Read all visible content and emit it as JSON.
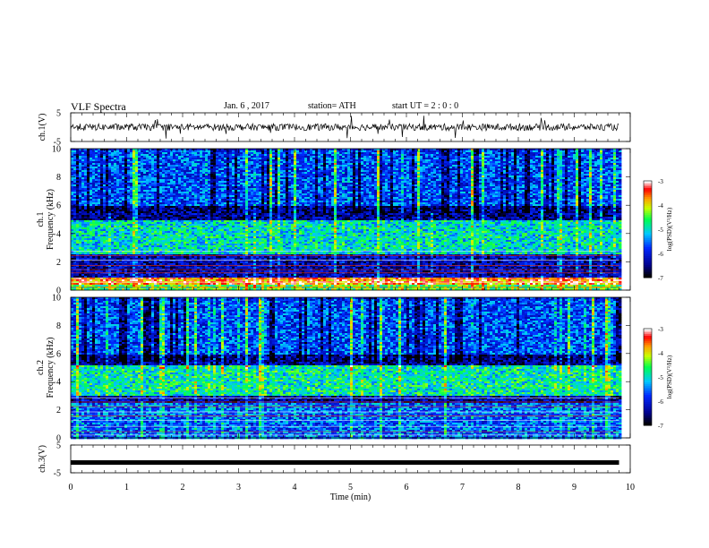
{
  "header": {
    "title": "VLF  Spectra",
    "date": "Jan. 6  , 2017",
    "station": "station= ATH",
    "start": "start  UT  =   2  : 0  : 0"
  },
  "chart_data": [
    {
      "type": "line",
      "name": "ch1-waveform",
      "ylabel": "ch.1(V)",
      "ylim": [
        -5,
        5
      ],
      "yticks": [
        "5",
        "-5"
      ],
      "x_range_min": [
        0,
        9.8
      ],
      "description_of_signal": "noisy waveform centered near 0 V with amplitude about 1-2 V and sporadic spikes"
    },
    {
      "type": "heatmap",
      "name": "ch1-spectrogram",
      "ylabel": "ch.1\nFrequency  (kHz)",
      "ylabel_line1": "ch.1",
      "ylabel_line2": "Frequency  (kHz)",
      "ylim_khz": [
        0,
        10
      ],
      "yticks": [
        "0",
        "2",
        "4",
        "6",
        "8",
        "10"
      ],
      "xlim_min": [
        0,
        10
      ],
      "colorbar": {
        "label": "log(PSD)(V²/Hz)",
        "ticks": [
          "-3",
          "-4",
          "-5",
          "-6",
          "-7"
        ],
        "range": [
          -7,
          -3
        ],
        "colors": [
          "#000000",
          "#0000ff",
          "#00ffff",
          "#00ff00",
          "#ffff00",
          "#ff0000",
          "#ffffff"
        ]
      },
      "bands": [
        {
          "from_khz": 0,
          "to_khz": 0.5,
          "level": -4.5
        },
        {
          "from_khz": 0.5,
          "to_khz": 1.0,
          "level": -3.6
        },
        {
          "from_khz": 1.0,
          "to_khz": 2.6,
          "level": -6.3
        },
        {
          "from_khz": 2.6,
          "to_khz": 5.0,
          "level": -5.0
        },
        {
          "from_khz": 5.0,
          "to_khz": 6.0,
          "level": -6.5
        },
        {
          "from_khz": 6.0,
          "to_khz": 10.0,
          "level": -5.7
        }
      ]
    },
    {
      "type": "heatmap",
      "name": "ch2-spectrogram",
      "ylabel_line1": "ch.2",
      "ylabel_line2": "Frequency  (kHz)",
      "ylim_khz": [
        0,
        10
      ],
      "yticks": [
        "0",
        "2",
        "4",
        "6",
        "8",
        "10"
      ],
      "xlim_min": [
        0,
        10
      ],
      "colorbar": {
        "label": "log(PSD)(V²/Hz)",
        "ticks": [
          "-3",
          "-4",
          "-5",
          "-6",
          "-7"
        ],
        "range": [
          -7,
          -3
        ]
      },
      "bands": [
        {
          "from_khz": 0,
          "to_khz": 2.5,
          "level": -5.6
        },
        {
          "from_khz": 2.5,
          "to_khz": 3.0,
          "level": -6.4
        },
        {
          "from_khz": 3.0,
          "to_khz": 5.2,
          "level": -4.9
        },
        {
          "from_khz": 5.2,
          "to_khz": 6.0,
          "level": -6.5
        },
        {
          "from_khz": 6.0,
          "to_khz": 10.0,
          "level": -5.7
        }
      ]
    },
    {
      "type": "line",
      "name": "ch3-waveform",
      "ylabel": "ch.3(V)",
      "ylim": [
        -5,
        5
      ],
      "yticks": [
        "5",
        "-5"
      ],
      "level_v": -1.3
    }
  ],
  "xaxis": {
    "label": "Time  (min)",
    "ticks": [
      "0",
      "1",
      "2",
      "3",
      "4",
      "5",
      "6",
      "7",
      "8",
      "9",
      "10"
    ],
    "range": [
      0,
      10
    ],
    "data_end": 9.8
  }
}
